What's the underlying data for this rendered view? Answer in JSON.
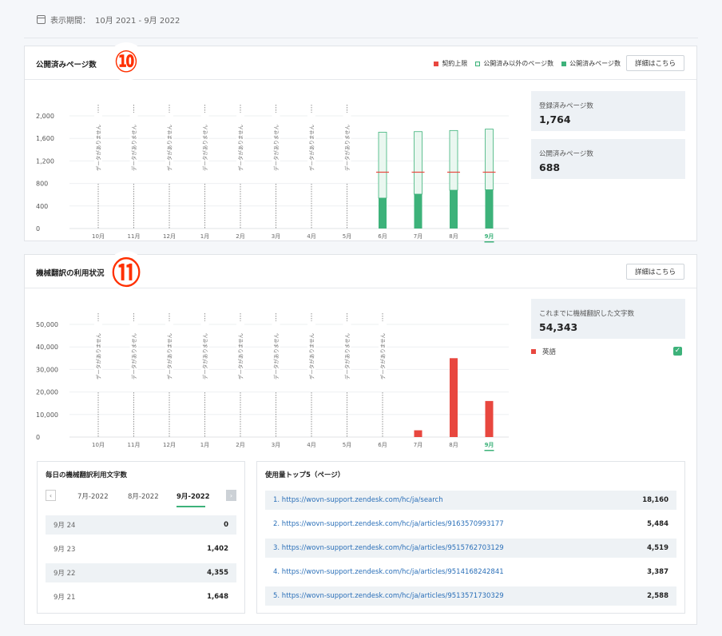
{
  "period": {
    "label": "表示期間：",
    "value": "10月 2021 - 9月 2022"
  },
  "card1": {
    "title": "公開済みページ数",
    "badge": "⑩",
    "detail_button": "詳細はこちら",
    "legend": [
      {
        "label": "契約上限",
        "color": "#e8473f",
        "style": "fill"
      },
      {
        "label": "公開済み以外のページ数",
        "color": "#3db27a",
        "style": "outline"
      },
      {
        "label": "公開済みページ数",
        "color": "#3db27a",
        "style": "fill"
      }
    ],
    "stats": [
      {
        "label": "登録済みページ数",
        "value": "1,764"
      },
      {
        "label": "公開済みページ数",
        "value": "688"
      }
    ]
  },
  "card2": {
    "title": "機械翻訳の利用状況",
    "badge": "⑪",
    "detail_button": "詳細はこちら",
    "stat": {
      "label": "これまでに機械翻訳した文字数",
      "value": "54,343"
    },
    "language": {
      "label": "英語",
      "color": "#e8473f",
      "checked": true
    }
  },
  "chart_data": [
    {
      "type": "bar",
      "categories": [
        "10月",
        "11月",
        "12月",
        "1月",
        "2月",
        "3月",
        "4月",
        "5月",
        "6月",
        "7月",
        "8月",
        "9月"
      ],
      "yticks": [
        "0",
        "400",
        "800",
        "1,200",
        "1,600",
        "2,000"
      ],
      "ylim": [
        0,
        2000
      ],
      "no_data_label": "データがありません",
      "no_data_months": [
        "10月",
        "11月",
        "12月",
        "1月",
        "2月",
        "3月",
        "4月",
        "5月"
      ],
      "series": [
        {
          "name": "公開済みページ数",
          "values": [
            null,
            null,
            null,
            null,
            null,
            null,
            null,
            null,
            540,
            610,
            680,
            688
          ]
        },
        {
          "name": "公開済み以外のページ数",
          "values": [
            null,
            null,
            null,
            null,
            null,
            null,
            null,
            null,
            1170,
            1110,
            1060,
            1076
          ]
        },
        {
          "name": "契約上限",
          "values": [
            null,
            null,
            null,
            null,
            null,
            null,
            null,
            null,
            1000,
            1000,
            1000,
            1000
          ]
        }
      ],
      "selected": "9月"
    },
    {
      "type": "bar",
      "categories": [
        "10月",
        "11月",
        "12月",
        "1月",
        "2月",
        "3月",
        "4月",
        "5月",
        "6月",
        "7月",
        "8月",
        "9月"
      ],
      "yticks": [
        "0",
        "10,000",
        "20,000",
        "30,000",
        "40,000",
        "50,000"
      ],
      "ylim": [
        0,
        50000
      ],
      "no_data_label": "データがありません",
      "no_data_months": [
        "10月",
        "11月",
        "12月",
        "1月",
        "2月",
        "3月",
        "4月",
        "5月",
        "6月"
      ],
      "series": [
        {
          "name": "英語",
          "values": [
            null,
            null,
            null,
            null,
            null,
            null,
            null,
            null,
            null,
            3000,
            35000,
            16000
          ]
        }
      ],
      "selected": "9月"
    }
  ],
  "daily": {
    "title": "毎日の機械翻訳利用文字数",
    "tabs": [
      "7月-2022",
      "8月-2022",
      "9月-2022"
    ],
    "active_tab": "9月-2022",
    "rows": [
      {
        "date": "9月 24",
        "count": "0"
      },
      {
        "date": "9月 23",
        "count": "1,402"
      },
      {
        "date": "9月 22",
        "count": "4,355"
      },
      {
        "date": "9月 21",
        "count": "1,648"
      }
    ]
  },
  "top5": {
    "title": "使用量トップ5（ページ）",
    "rows": [
      {
        "url": "1. https://wovn-support.zendesk.com/hc/ja/search",
        "count": "18,160"
      },
      {
        "url": "2. https://wovn-support.zendesk.com/hc/ja/articles/9163570993177",
        "count": "5,484"
      },
      {
        "url": "3. https://wovn-support.zendesk.com/hc/ja/articles/9515762703129",
        "count": "4,519"
      },
      {
        "url": "4. https://wovn-support.zendesk.com/hc/ja/articles/9514168242841",
        "count": "3,387"
      },
      {
        "url": "5. https://wovn-support.zendesk.com/hc/ja/articles/9513571730329",
        "count": "2,588"
      }
    ]
  }
}
